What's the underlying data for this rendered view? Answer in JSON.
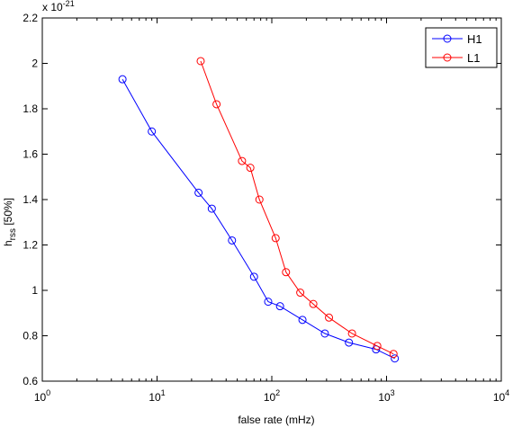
{
  "chart_data": {
    "type": "line",
    "title": "",
    "xlabel": "false rate (mHz)",
    "ylabel_main": "h",
    "ylabel_sub": "rss",
    "ylabel_suffix": " [50%]",
    "xscale": "log",
    "xlim": [
      1,
      10000
    ],
    "ylim": [
      0.6,
      2.2
    ],
    "y_multiplier": {
      "base": "x 10",
      "exponent": "-21"
    },
    "x_ticks": [
      {
        "value": 1,
        "base": "10",
        "exp": "0"
      },
      {
        "value": 10,
        "base": "10",
        "exp": "1"
      },
      {
        "value": 100,
        "base": "10",
        "exp": "2"
      },
      {
        "value": 1000,
        "base": "10",
        "exp": "3"
      },
      {
        "value": 10000,
        "base": "10",
        "exp": "4"
      }
    ],
    "y_ticks": [
      {
        "value": 0.6,
        "label": "0.6"
      },
      {
        "value": 0.8,
        "label": "0.8"
      },
      {
        "value": 1.0,
        "label": "1"
      },
      {
        "value": 1.2,
        "label": "1.2"
      },
      {
        "value": 1.4,
        "label": "1.4"
      },
      {
        "value": 1.6,
        "label": "1.6"
      },
      {
        "value": 1.8,
        "label": "1.8"
      },
      {
        "value": 2.0,
        "label": "2"
      },
      {
        "value": 2.2,
        "label": "2.2"
      }
    ],
    "grid": false,
    "legend_position": "top-right",
    "series": [
      {
        "name": "H1",
        "color": "#0000ff",
        "marker": "circle",
        "x": [
          5,
          9,
          23,
          30,
          45,
          70,
          93,
          118,
          185,
          290,
          470,
          810,
          1180
        ],
        "y": [
          1.93,
          1.7,
          1.43,
          1.36,
          1.22,
          1.06,
          0.95,
          0.93,
          0.87,
          0.81,
          0.77,
          0.74,
          0.7
        ]
      },
      {
        "name": "L1",
        "color": "#ff0000",
        "marker": "circle",
        "x": [
          24,
          33,
          55,
          65,
          78,
          108,
          133,
          177,
          230,
          315,
          500,
          830,
          1150
        ],
        "y": [
          2.01,
          1.82,
          1.57,
          1.54,
          1.4,
          1.23,
          1.08,
          0.99,
          0.94,
          0.88,
          0.81,
          0.755,
          0.72
        ]
      }
    ]
  }
}
